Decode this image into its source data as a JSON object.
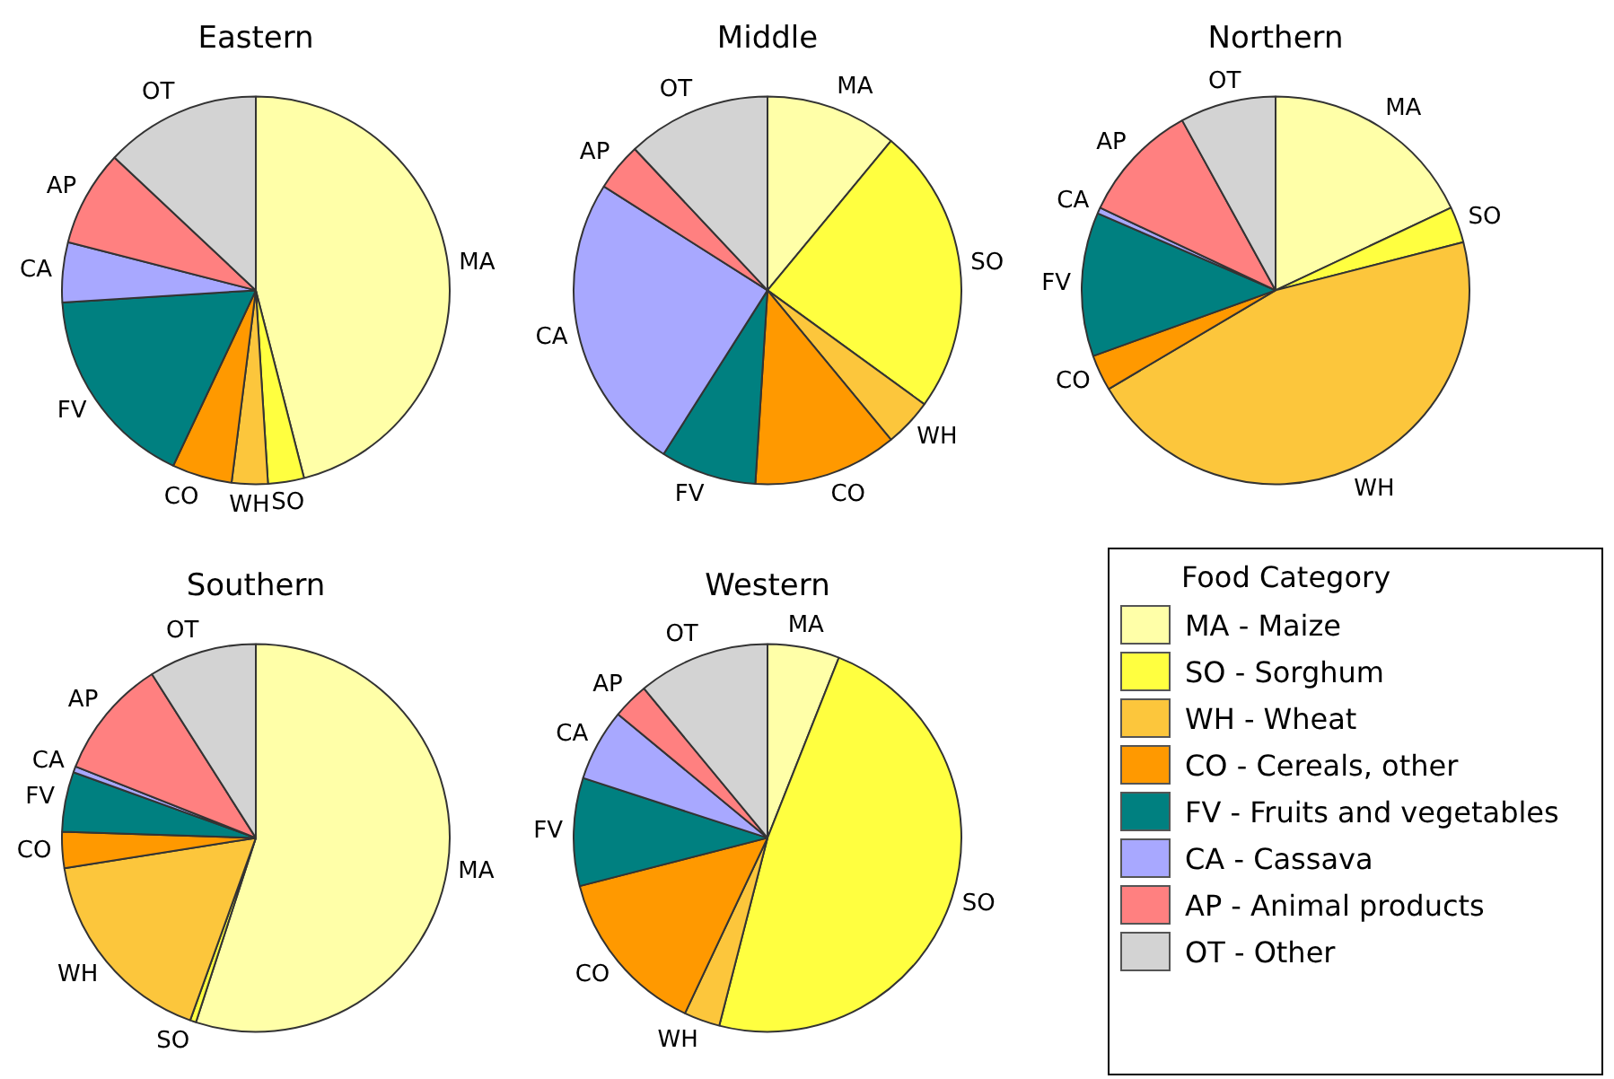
{
  "chart_data": [
    {
      "type": "pie",
      "title": "Eastern",
      "categories": [
        "MA",
        "SO",
        "WH",
        "CO",
        "FV",
        "CA",
        "AP",
        "OT"
      ],
      "values": [
        46,
        3,
        3,
        5,
        17,
        5,
        8,
        13
      ],
      "colors": [
        "#ffffa8",
        "#ffff40",
        "#fcc63c",
        "#ff9900",
        "#008080",
        "#a8a8ff",
        "#ff8080",
        "#d3d3d3"
      ]
    },
    {
      "type": "pie",
      "title": "Middle",
      "categories": [
        "MA",
        "SO",
        "WH",
        "CO",
        "FV",
        "CA",
        "AP",
        "OT"
      ],
      "values": [
        11,
        24,
        4,
        12,
        8,
        25,
        4,
        12
      ],
      "colors": [
        "#ffffa8",
        "#ffff40",
        "#fcc63c",
        "#ff9900",
        "#008080",
        "#a8a8ff",
        "#ff8080",
        "#d3d3d3"
      ]
    },
    {
      "type": "pie",
      "title": "Northern",
      "categories": [
        "MA",
        "SO",
        "WH",
        "CO",
        "FV",
        "CA",
        "AP",
        "OT"
      ],
      "values": [
        18,
        3,
        45.5,
        3,
        12,
        0.5,
        10,
        8
      ],
      "colors": [
        "#ffffa8",
        "#ffff40",
        "#fcc63c",
        "#ff9900",
        "#008080",
        "#a8a8ff",
        "#ff8080",
        "#d3d3d3"
      ]
    },
    {
      "type": "pie",
      "title": "Southern",
      "categories": [
        "MA",
        "SO",
        "WH",
        "CO",
        "FV",
        "CA",
        "AP",
        "OT"
      ],
      "values": [
        55,
        0.5,
        17,
        3,
        5,
        0.5,
        10,
        9
      ],
      "colors": [
        "#ffffa8",
        "#ffff40",
        "#fcc63c",
        "#ff9900",
        "#008080",
        "#a8a8ff",
        "#ff8080",
        "#d3d3d3"
      ]
    },
    {
      "type": "pie",
      "title": "Western",
      "categories": [
        "MA",
        "SO",
        "WH",
        "CO",
        "FV",
        "CA",
        "AP",
        "OT"
      ],
      "values": [
        6,
        48,
        3,
        14,
        9,
        6,
        3,
        11
      ],
      "colors": [
        "#ffffa8",
        "#ffff40",
        "#fcc63c",
        "#ff9900",
        "#008080",
        "#a8a8ff",
        "#ff8080",
        "#d3d3d3"
      ]
    },
    {
      "type": "other",
      "legend_title": "Food Category",
      "categories": [
        "MA - Maize",
        "SO - Sorghum",
        "WH - Wheat",
        "CO - Cereals, other",
        "FV - Fruits and vegetables",
        "CA - Cassava",
        "AP - Animal products",
        "OT - Other"
      ],
      "colors": [
        "#ffffa8",
        "#ffff40",
        "#fcc63c",
        "#ff9900",
        "#008080",
        "#a8a8ff",
        "#ff8080",
        "#d3d3d3"
      ]
    }
  ]
}
